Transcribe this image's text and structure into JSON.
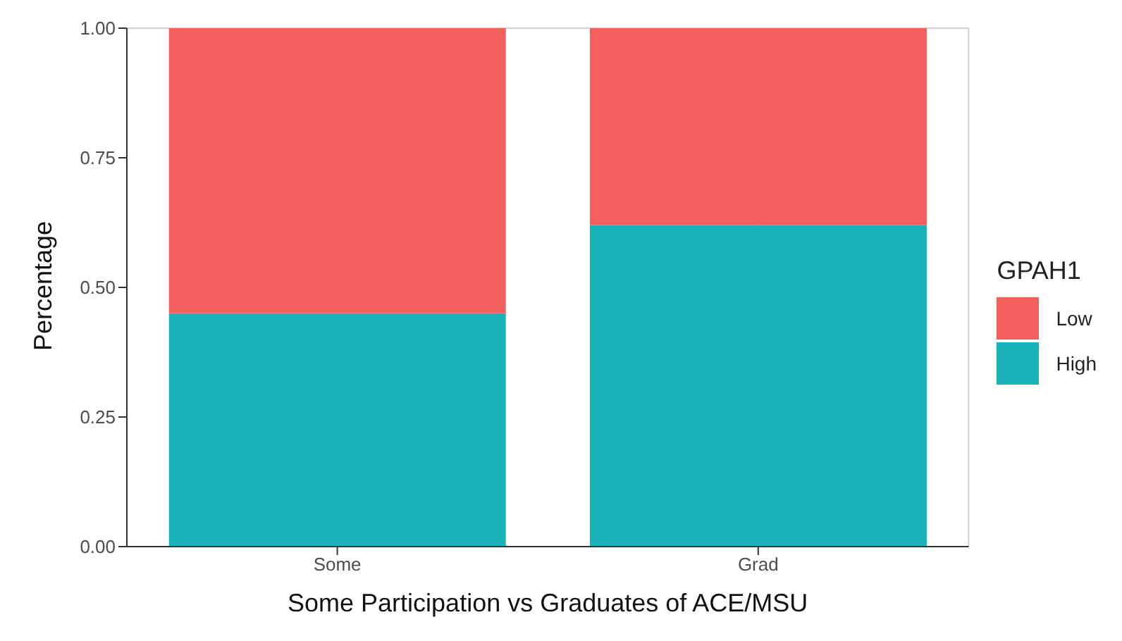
{
  "chart_data": {
    "type": "bar",
    "xlabel": "Some Participation vs Graduates of ACE/MSU",
    "ylabel": "Percentage",
    "legend_title": "GPAH1",
    "categories": [
      "Some",
      "Grad"
    ],
    "stacked": true,
    "series": [
      {
        "name": "High",
        "color": "#19b2b8",
        "values": [
          0.45,
          0.62
        ]
      },
      {
        "name": "Low",
        "color": "#f25f5c",
        "values": [
          0.55,
          0.38
        ]
      }
    ],
    "ylim": [
      0,
      1
    ],
    "yticks": [
      {
        "value": 0,
        "label": "0.00"
      },
      {
        "value": 0.25,
        "label": "0.25"
      },
      {
        "value": 0.5,
        "label": "0.50"
      },
      {
        "value": 0.75,
        "label": "0.75"
      },
      {
        "value": 1,
        "label": "1.00"
      }
    ],
    "grid": true,
    "legend": "right"
  }
}
